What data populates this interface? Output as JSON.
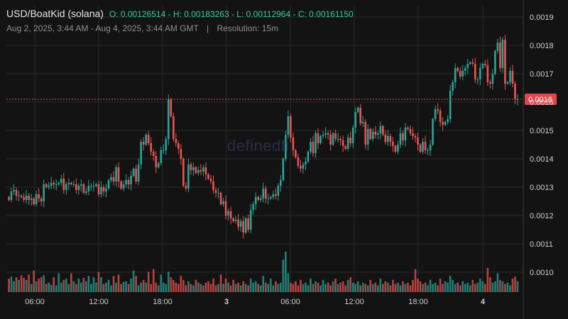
{
  "header": {
    "symbol": "USD/BoatKid (solana)",
    "ohlc": "O: 0.00126514 - H: 0.00183263 - L: 0.00112964 - C: 0.00161150",
    "range": "Aug 2, 2025, 3:44 AM - Aug 4, 2025, 3:44 AM GMT",
    "separator": "|",
    "resolution": "Resolution: 15m"
  },
  "watermark": "definedfi",
  "colors": {
    "up": "#26a69a",
    "down": "#ef5350",
    "background": "#131313",
    "grid": "#2a2a2a",
    "text": "#d6d6d6",
    "price_line": "#e0474c"
  },
  "chart_data": {
    "type": "candlestick",
    "x_tick_labels": [
      "06:00",
      "12:00",
      "18:00",
      "3",
      "06:00",
      "12:00",
      "18:00",
      "4"
    ],
    "y_tick_labels": [
      "0.0019",
      "0.0018",
      "0.0017",
      "0.0016",
      "0.0015",
      "0.0014",
      "0.0013",
      "0.0012",
      "0.0011",
      "0.0010"
    ],
    "ylim": [
      0.00093,
      0.00194
    ],
    "last_price_label": "0.0016",
    "last_price": 0.00161,
    "grid": true,
    "close": [
      0.001255,
      0.001285,
      0.00129,
      0.00127,
      0.00127,
      0.001265,
      0.001255,
      0.00127,
      0.001255,
      0.00126,
      0.00124,
      0.001275,
      0.00126,
      0.00125,
      0.00131,
      0.0013,
      0.001305,
      0.001315,
      0.00131,
      0.00131,
      0.001315,
      0.00133,
      0.00129,
      0.00131,
      0.001315,
      0.00131,
      0.00131,
      0.00129,
      0.001305,
      0.00131,
      0.00128,
      0.001285,
      0.001305,
      0.001305,
      0.001305,
      0.00131,
      0.001275,
      0.0013,
      0.001285,
      0.001295,
      0.001325,
      0.001335,
      0.00132,
      0.00137,
      0.00132,
      0.001295,
      0.00131,
      0.001325,
      0.00131,
      0.00134,
      0.001365,
      0.00132,
      0.00138,
      0.00146,
      0.00145,
      0.001485,
      0.001455,
      0.001425,
      0.00141,
      0.00137,
      0.001385,
      0.00143,
      0.00143,
      0.00147,
      0.00161,
      0.00155,
      0.00147,
      0.001455,
      0.001435,
      0.0014,
      0.001305,
      0.001295,
      0.00138,
      0.00136,
      0.00137,
      0.00135,
      0.00136,
      0.001355,
      0.00137,
      0.001345,
      0.00133,
      0.00132,
      0.00129,
      0.00128,
      0.00128,
      0.00124,
      0.00125,
      0.0012,
      0.001215,
      0.00119,
      0.00118,
      0.001185,
      0.00116,
      0.00118,
      0.00114,
      0.00119,
      0.00115,
      0.00122,
      0.00124,
      0.001265,
      0.001255,
      0.00126,
      0.001295,
      0.00126,
      0.00126,
      0.001265,
      0.001275,
      0.00127,
      0.001305,
      0.001325,
      0.0014,
      0.001485,
      0.00155,
      0.001475,
      0.00143,
      0.001405,
      0.001375,
      0.001365,
      0.00138,
      0.00139,
      0.001425,
      0.00146,
      0.00142,
      0.00149,
      0.001455,
      0.00148,
      0.001485,
      0.00149,
      0.001485,
      0.00145,
      0.00149,
      0.00147,
      0.00147,
      0.001465,
      0.001445,
      0.001435,
      0.001475,
      0.001455,
      0.00151,
      0.001565,
      0.00158,
      0.001525,
      0.00153,
      0.00145,
      0.001505,
      0.00147,
      0.001495,
      0.001485,
      0.00149,
      0.001515,
      0.001485,
      0.00146,
      0.00148,
      0.00146,
      0.001445,
      0.001425,
      0.00145,
      0.00149,
      0.001465,
      0.00151,
      0.001505,
      0.00149,
      0.00148,
      0.001475,
      0.00145,
      0.001425,
      0.00146,
      0.00143,
      0.00143,
      0.00145,
      0.00154,
      0.001575,
      0.00157,
      0.00153,
      0.00152,
      0.00153,
      0.00154,
      0.00164,
      0.00167,
      0.00172,
      0.00171,
      0.00169,
      0.00171,
      0.00172,
      0.001735,
      0.00174,
      0.001735,
      0.00168,
      0.00168,
      0.00172,
      0.001735,
      0.00173,
      0.00167,
      0.001665,
      0.0017,
      0.00178,
      0.00181,
      0.00172,
      0.00182,
      0.001665,
      0.00167,
      0.00171,
      0.001665,
      0.00161,
      0.00161
    ],
    "volume_ylim": [
      0,
      100
    ],
    "volume_scale_note": "volume axis is unlabeled; values are relative"
  }
}
